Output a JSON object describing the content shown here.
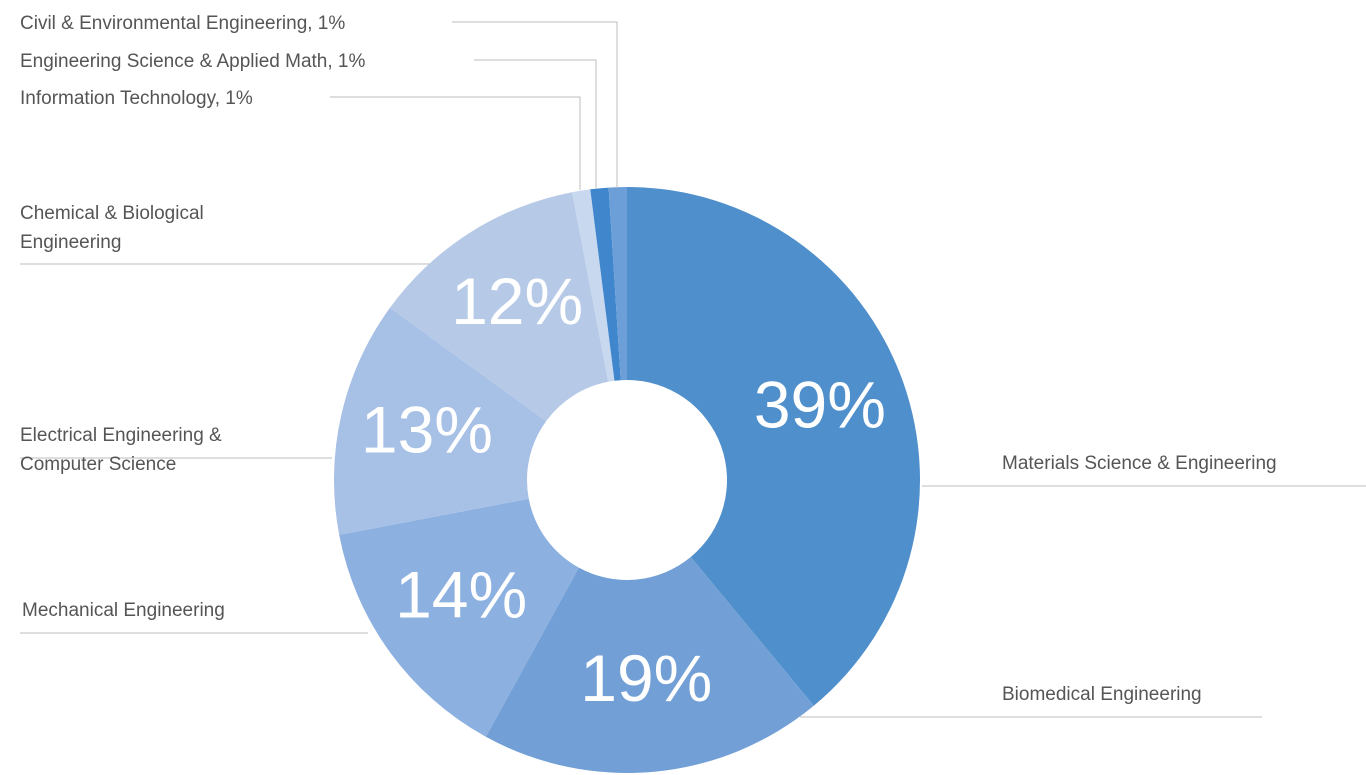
{
  "chart_data": {
    "type": "donut",
    "categories": [
      "Materials Science & Engineering",
      "Biomedical Engineering",
      "Mechanical Engineering",
      "Electrical Engineering &\nComputer Science",
      "Chemical & Biological\nEngineering",
      "Information Technology, 1%",
      "Engineering Science & Applied Math, 1%",
      "Civil & Environmental Engineering, 1%"
    ],
    "values": [
      39,
      19,
      14,
      13,
      12,
      1,
      1,
      1
    ],
    "value_labels": [
      "39%",
      "19%",
      "14%",
      "13%",
      "12%",
      null,
      null,
      null
    ],
    "colors": [
      "#4f8fcc",
      "#72a0d6",
      "#8cb0e0",
      "#a6c0e6",
      "#b6cae8",
      "#c8d8ef",
      "#3f86cd",
      "#6c9fd8"
    ]
  }
}
